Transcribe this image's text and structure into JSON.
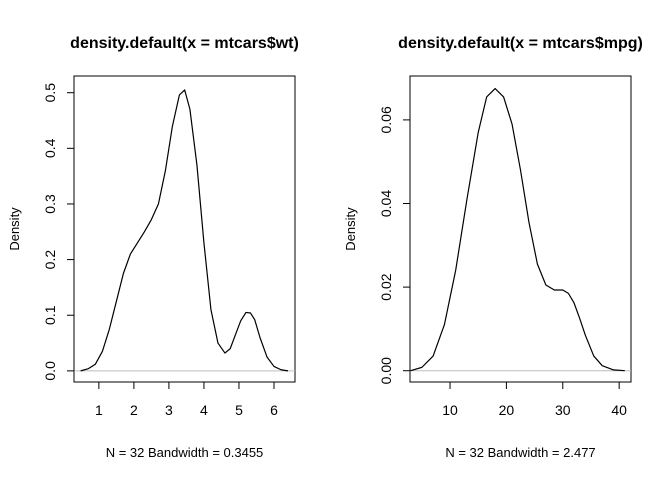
{
  "chart_data": [
    {
      "type": "line",
      "title": "density.default(x = mtcars$wt)",
      "xlabel": "N = 32   Bandwidth = 0.3455",
      "ylabel": "Density",
      "xlim": [
        0.29,
        6.6
      ],
      "ylim": [
        -0.02,
        0.53
      ],
      "xticks": [
        1,
        2,
        3,
        4,
        5,
        6
      ],
      "yticks": [
        0.0,
        0.1,
        0.2,
        0.3,
        0.4,
        0.5
      ],
      "xtick_labels": [
        "1",
        "2",
        "3",
        "4",
        "5",
        "6"
      ],
      "ytick_labels": [
        "0.0",
        "0.1",
        "0.2",
        "0.3",
        "0.4",
        "0.5"
      ],
      "grid": false,
      "baseline": 0,
      "baseline_color": "#bebebe",
      "line_color": "#000000",
      "x": [
        0.48,
        0.7,
        0.9,
        1.1,
        1.3,
        1.5,
        1.7,
        1.9,
        2.1,
        2.3,
        2.5,
        2.7,
        2.9,
        3.1,
        3.3,
        3.45,
        3.6,
        3.8,
        4.0,
        4.2,
        4.4,
        4.6,
        4.75,
        4.9,
        5.05,
        5.2,
        5.33,
        5.45,
        5.6,
        5.8,
        6.0,
        6.2,
        6.4
      ],
      "y": [
        0.0,
        0.004,
        0.012,
        0.035,
        0.075,
        0.125,
        0.175,
        0.21,
        0.23,
        0.25,
        0.272,
        0.3,
        0.36,
        0.44,
        0.496,
        0.505,
        0.47,
        0.37,
        0.23,
        0.11,
        0.05,
        0.032,
        0.04,
        0.065,
        0.09,
        0.105,
        0.104,
        0.092,
        0.06,
        0.025,
        0.008,
        0.002,
        0.0
      ]
    },
    {
      "type": "line",
      "title": "density.default(x = mtcars$mpg)",
      "xlabel": "N = 32   Bandwidth = 2.477",
      "ylabel": "Density",
      "xlim": [
        2.9,
        42.1
      ],
      "ylim": [
        -0.0027,
        0.0705
      ],
      "xticks": [
        10,
        20,
        30,
        40
      ],
      "yticks": [
        0.0,
        0.02,
        0.04,
        0.06
      ],
      "xtick_labels": [
        "10",
        "20",
        "30",
        "40"
      ],
      "ytick_labels": [
        "0.00",
        "0.02",
        "0.04",
        "0.06"
      ],
      "grid": false,
      "baseline": 0,
      "baseline_color": "#bebebe",
      "line_color": "#000000",
      "x": [
        3.0,
        5.0,
        7.0,
        9.0,
        11.0,
        13.0,
        15.0,
        16.5,
        18.0,
        19.5,
        21.0,
        22.5,
        24.0,
        25.5,
        27.0,
        28.5,
        30.0,
        31.0,
        32.0,
        33.0,
        34.0,
        35.5,
        37.0,
        39.0,
        41.0
      ],
      "y": [
        0.0,
        0.0008,
        0.0035,
        0.011,
        0.024,
        0.041,
        0.057,
        0.0655,
        0.0675,
        0.0655,
        0.059,
        0.048,
        0.0355,
        0.0255,
        0.0205,
        0.0193,
        0.0193,
        0.0185,
        0.0162,
        0.0125,
        0.0085,
        0.0035,
        0.0012,
        0.0002,
        0.0
      ]
    }
  ]
}
